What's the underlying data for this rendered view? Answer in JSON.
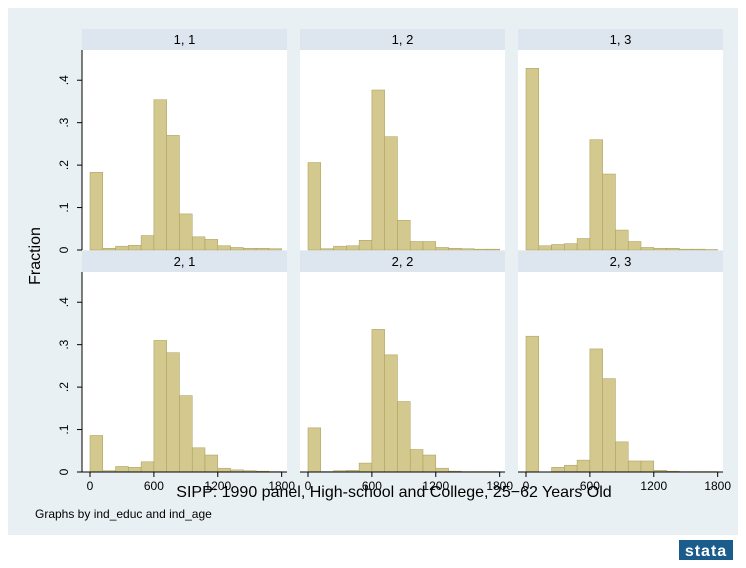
{
  "chart_data": {
    "type": "bar",
    "layout": "small-multiples",
    "rows": 2,
    "cols": 3,
    "xlabel": "SIPP: 1990 panel, High-school and College, 25−62 Years Old",
    "ylabel": "Fraction",
    "note": "Graphs by ind_educ and ind_age",
    "xlim": [
      -75,
      1850
    ],
    "ylim": [
      0,
      0.45
    ],
    "xticks": [
      0,
      600,
      1200,
      1800
    ],
    "yticks": [
      0,
      0.1,
      0.2,
      0.3,
      0.4
    ],
    "ytick_labels": [
      "0",
      ".1",
      ".2",
      ".3",
      ".4"
    ],
    "bin_width": 120,
    "bin_starts": [
      0,
      120,
      240,
      360,
      480,
      600,
      720,
      840,
      960,
      1080,
      1200,
      1320,
      1440,
      1560,
      1680
    ],
    "grid": false,
    "colors": {
      "bar_fill": "#d3c88e",
      "bar_stroke": "#a89c55",
      "strip": "#dde6ee",
      "outer_bg": "#e9f0f4",
      "plot_bg": "#ffffff",
      "logo_bg": "#1a5c8c"
    },
    "panels": [
      {
        "label": "1, 1",
        "values": [
          0.183,
          0.004,
          0.009,
          0.011,
          0.034,
          0.354,
          0.27,
          0.085,
          0.031,
          0.025,
          0.01,
          0.006,
          0.004,
          0.004,
          0.003
        ]
      },
      {
        "label": "1, 2",
        "values": [
          0.206,
          0.003,
          0.009,
          0.01,
          0.023,
          0.377,
          0.267,
          0.07,
          0.02,
          0.02,
          0.006,
          0.004,
          0.003,
          0.002,
          0.002
        ]
      },
      {
        "label": "1, 3",
        "values": [
          0.428,
          0.01,
          0.013,
          0.015,
          0.027,
          0.26,
          0.179,
          0.047,
          0.02,
          0.006,
          0.004,
          0.004,
          0.002,
          0.002,
          0.001
        ]
      },
      {
        "label": "2, 1",
        "values": [
          0.086,
          0.003,
          0.013,
          0.011,
          0.024,
          0.31,
          0.281,
          0.18,
          0.057,
          0.04,
          0.009,
          0.005,
          0.003,
          0.002,
          0.001
        ]
      },
      {
        "label": "2, 2",
        "values": [
          0.104,
          0.001,
          0.003,
          0.004,
          0.021,
          0.336,
          0.276,
          0.166,
          0.053,
          0.04,
          0.009,
          0.002,
          0.001,
          0.001,
          0.001
        ]
      },
      {
        "label": "2, 3",
        "values": [
          0.32,
          0.0,
          0.011,
          0.016,
          0.028,
          0.29,
          0.22,
          0.071,
          0.026,
          0.026,
          0.004,
          0.002,
          0.001,
          0.001,
          0.001
        ]
      }
    ]
  },
  "logo": {
    "text": "stata"
  }
}
